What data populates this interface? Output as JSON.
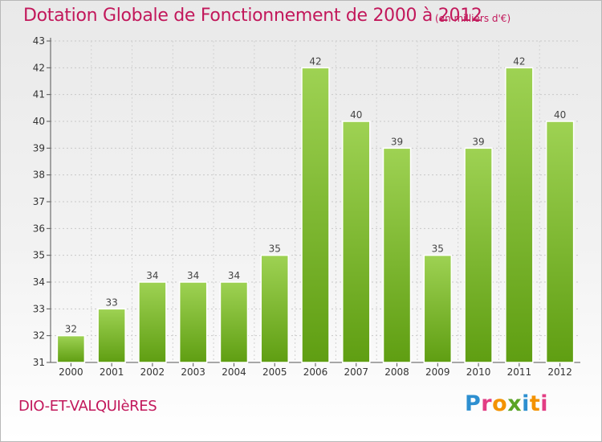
{
  "header": {
    "title": "Dotation Globale de Fonctionnement de 2000 à 2012",
    "subtitle": "(en milliers d'€)"
  },
  "footer": {
    "commune": "DIO-ET-VALQUIèRES",
    "logo": "Proxiti"
  },
  "colors": {
    "title": "#c2185b",
    "bar_light": "#9ed253",
    "bar_dark": "#5f9e12",
    "logo_letters": [
      "#2d8fd0",
      "#e23d84",
      "#f39200",
      "#5aa426",
      "#2d8fd0",
      "#f39200",
      "#e23d84"
    ]
  },
  "chart_data": {
    "type": "bar",
    "categories": [
      "2000",
      "2001",
      "2002",
      "2003",
      "2004",
      "2005",
      "2006",
      "2007",
      "2008",
      "2009",
      "2010",
      "2011",
      "2012"
    ],
    "values": [
      32,
      33,
      34,
      34,
      34,
      35,
      42,
      40,
      39,
      35,
      39,
      42,
      40
    ],
    "ylim": [
      31,
      43
    ],
    "yticks": [
      31,
      32,
      33,
      34,
      35,
      36,
      37,
      38,
      39,
      40,
      41,
      42,
      43
    ],
    "grid": true,
    "data_labels": true,
    "legend": "none"
  }
}
